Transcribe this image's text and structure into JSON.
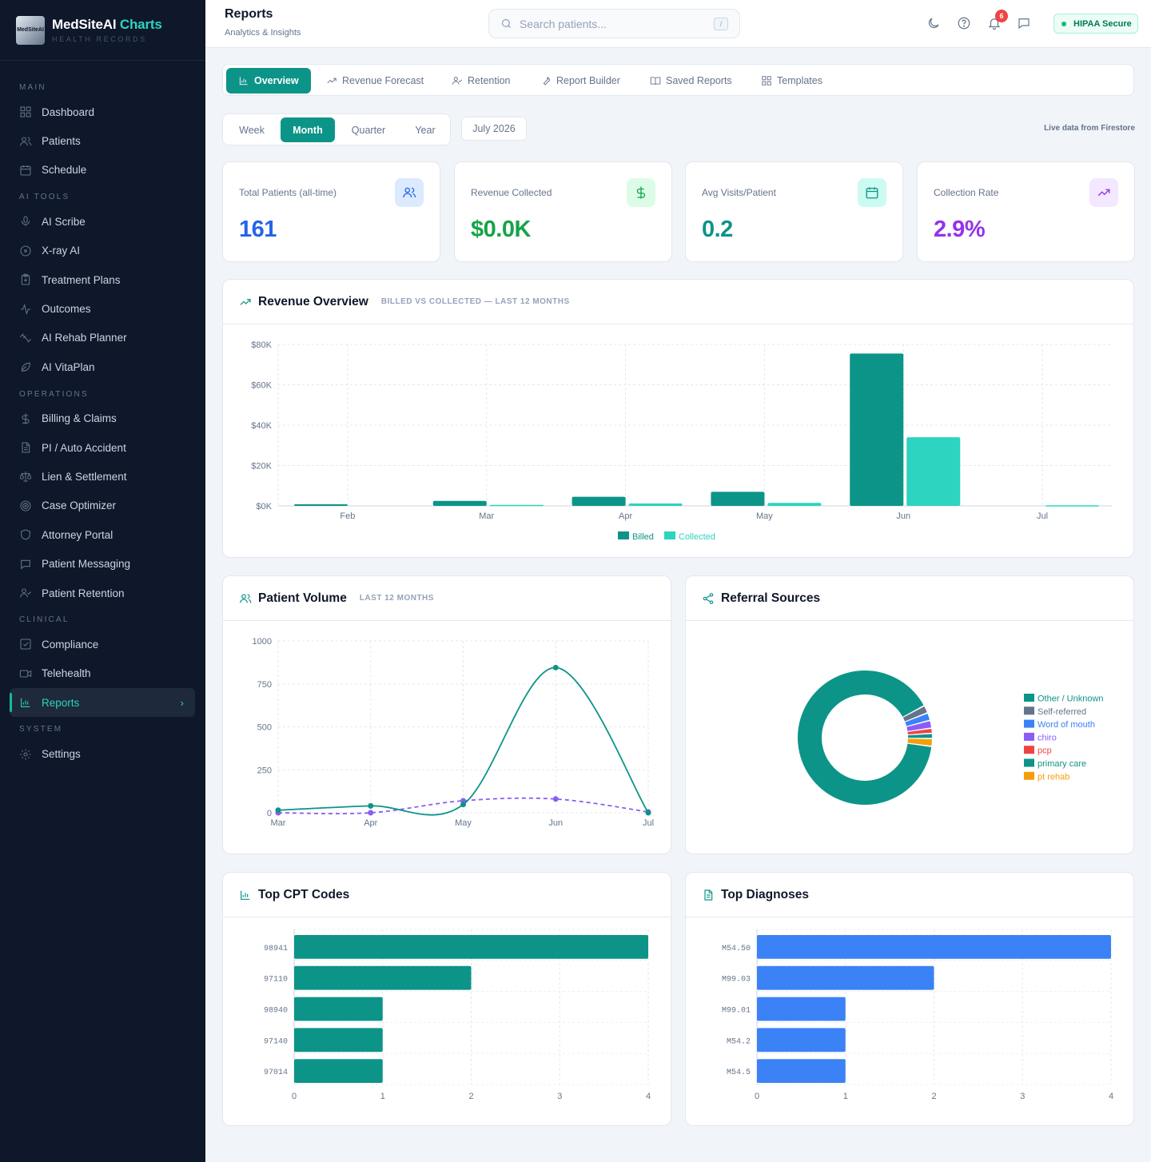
{
  "brand": {
    "name_main": "MedSiteAI",
    "name_accent": "Charts",
    "tagline": "HEALTH RECORDS",
    "logo_text": "MedSiteAI"
  },
  "sidebar": {
    "sections": [
      {
        "title": "MAIN",
        "items": [
          {
            "label": "Dashboard",
            "icon": "grid-icon"
          },
          {
            "label": "Patients",
            "icon": "users-icon"
          },
          {
            "label": "Schedule",
            "icon": "calendar-icon"
          }
        ]
      },
      {
        "title": "AI TOOLS",
        "items": [
          {
            "label": "AI Scribe",
            "icon": "mic-icon"
          },
          {
            "label": "X-ray AI",
            "icon": "scan-icon"
          },
          {
            "label": "Treatment Plans",
            "icon": "clipboard-plus-icon"
          },
          {
            "label": "Outcomes",
            "icon": "activity-icon"
          },
          {
            "label": "AI Rehab Planner",
            "icon": "dumbbell-icon"
          },
          {
            "label": "AI VitaPlan",
            "icon": "leaf-icon"
          }
        ]
      },
      {
        "title": "OPERATIONS",
        "items": [
          {
            "label": "Billing & Claims",
            "icon": "dollar-icon"
          },
          {
            "label": "PI / Auto Accident",
            "icon": "file-icon"
          },
          {
            "label": "Lien & Settlement",
            "icon": "scale-icon"
          },
          {
            "label": "Case Optimizer",
            "icon": "target-icon"
          },
          {
            "label": "Attorney Portal",
            "icon": "shield-icon"
          },
          {
            "label": "Patient Messaging",
            "icon": "message-icon"
          },
          {
            "label": "Patient Retention",
            "icon": "user-check-icon"
          }
        ]
      },
      {
        "title": "CLINICAL",
        "items": [
          {
            "label": "Compliance",
            "icon": "check-square-icon"
          },
          {
            "label": "Telehealth",
            "icon": "video-icon"
          },
          {
            "label": "Reports",
            "icon": "bar-chart-icon",
            "active": true
          }
        ]
      },
      {
        "title": "SYSTEM",
        "items": [
          {
            "label": "Settings",
            "icon": "gear-icon"
          }
        ]
      }
    ]
  },
  "header": {
    "title": "Reports",
    "subtitle": "Analytics & Insights",
    "search_placeholder": "Search patients...",
    "search_shortcut": "/",
    "notification_count": "6",
    "hipaa_label": "HIPAA Secure"
  },
  "tabs": [
    {
      "label": "Overview",
      "icon": "bar-chart-icon",
      "active": true
    },
    {
      "label": "Revenue Forecast",
      "icon": "trending-up-icon"
    },
    {
      "label": "Retention",
      "icon": "user-check-icon"
    },
    {
      "label": "Report Builder",
      "icon": "wrench-icon"
    },
    {
      "label": "Saved Reports",
      "icon": "book-open-icon"
    },
    {
      "label": "Templates",
      "icon": "layout-grid-icon"
    }
  ],
  "period": {
    "options": [
      "Week",
      "Month",
      "Quarter",
      "Year"
    ],
    "selected": "Month",
    "current": "July 2026",
    "live_note": "Live data from Firestore"
  },
  "stats": [
    {
      "label": "Total Patients (all-time)",
      "value": "161",
      "color": "#2563eb",
      "icon_bg": "#dbeafe",
      "icon": "users-icon"
    },
    {
      "label": "Revenue Collected",
      "value": "$0.0K",
      "color": "#16a34a",
      "icon_bg": "#dcfce7",
      "icon": "dollar-icon"
    },
    {
      "label": "Avg Visits/Patient",
      "value": "0.2",
      "color": "#0d9488",
      "icon_bg": "#ccfbf1",
      "icon": "calendar-icon"
    },
    {
      "label": "Collection Rate",
      "value": "2.9%",
      "color": "#9333ea",
      "icon_bg": "#f3e8ff",
      "icon": "trending-up-icon"
    }
  ],
  "cards": {
    "revenue": {
      "title": "Revenue Overview",
      "subtitle": "BILLED VS COLLECTED — LAST 12 MONTHS"
    },
    "volume": {
      "title": "Patient Volume",
      "subtitle": "LAST 12 MONTHS"
    },
    "referral": {
      "title": "Referral Sources"
    },
    "cpt": {
      "title": "Top CPT Codes"
    },
    "diagnoses": {
      "title": "Top Diagnoses"
    }
  },
  "chart_data": [
    {
      "id": "revenue",
      "type": "bar",
      "categories": [
        "Feb",
        "Mar",
        "Apr",
        "May",
        "Jun",
        "Jul"
      ],
      "series": [
        {
          "name": "Billed",
          "color": "#0d9488",
          "values": [
            800,
            2500,
            4500,
            7000,
            75500,
            0
          ]
        },
        {
          "name": "Collected",
          "color": "#2dd4bf",
          "values": [
            0,
            500,
            1200,
            1500,
            34000,
            300
          ]
        }
      ],
      "yticks": [
        "$0K",
        "$20K",
        "$40K",
        "$60K",
        "$80K"
      ],
      "ylim": [
        0,
        80000
      ],
      "grid": true,
      "legend": "bottom"
    },
    {
      "id": "volume",
      "type": "line",
      "x": [
        "Mar",
        "Apr",
        "May",
        "Jun",
        "Jul"
      ],
      "series": [
        {
          "color": "#0d9488",
          "dashed": false,
          "values": [
            15,
            40,
            48,
            845,
            0
          ]
        },
        {
          "color": "#8b5cf6",
          "dashed": true,
          "values": [
            0,
            0,
            70,
            80,
            5
          ]
        }
      ],
      "yticks": [
        0,
        250,
        500,
        750,
        1000
      ],
      "ylim": [
        0,
        1000
      ],
      "grid": true
    },
    {
      "id": "referral",
      "type": "pie",
      "labels": [
        "Other / Unknown",
        "Self-referred",
        "Word of mouth",
        "chiro",
        "pcp",
        "primary care",
        "pt rehab"
      ],
      "colors": [
        "#0d9488",
        "#64748b",
        "#3b82f6",
        "#8b5cf6",
        "#ef4444",
        "#0d9488",
        "#f59e0b"
      ],
      "values": [
        145,
        3,
        3,
        3,
        2,
        2,
        3
      ],
      "legend": "right"
    },
    {
      "id": "cpt",
      "type": "bar",
      "orientation": "horizontal",
      "categories": [
        "98941",
        "97110",
        "98940",
        "97140",
        "97014"
      ],
      "values": [
        4,
        2,
        1,
        1,
        1
      ],
      "color": "#0d9488",
      "xticks": [
        0,
        1,
        2,
        3,
        4
      ],
      "xlim": [
        0,
        4
      ]
    },
    {
      "id": "diagnoses",
      "type": "bar",
      "orientation": "horizontal",
      "categories": [
        "M54.50",
        "M99.03",
        "M99.01",
        "M54.2",
        "M54.5"
      ],
      "values": [
        4,
        2,
        1,
        1,
        1
      ],
      "color": "#3b82f6",
      "xticks": [
        0,
        1,
        2,
        3,
        4
      ],
      "xlim": [
        0,
        4
      ]
    }
  ]
}
